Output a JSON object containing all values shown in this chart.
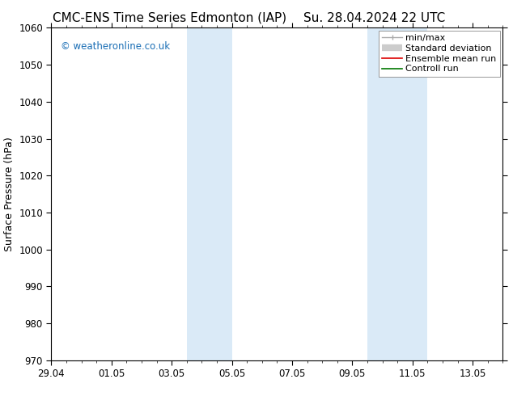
{
  "title_left": "CMC-ENS Time Series Edmonton (IAP)",
  "title_right": "Su. 28.04.2024 22 UTC",
  "ylabel": "Surface Pressure (hPa)",
  "ylim": [
    970,
    1060
  ],
  "yticks": [
    970,
    980,
    990,
    1000,
    1010,
    1020,
    1030,
    1040,
    1050,
    1060
  ],
  "xlim": [
    0,
    15
  ],
  "xtick_labels": [
    "29.04",
    "01.05",
    "03.05",
    "05.05",
    "07.05",
    "09.05",
    "11.05",
    "13.05"
  ],
  "xtick_positions": [
    0,
    2,
    4,
    6,
    8,
    10,
    12,
    14
  ],
  "shaded_bands": [
    {
      "start": 4.5,
      "end": 6.0
    },
    {
      "start": 10.5,
      "end": 12.5
    }
  ],
  "shade_color": "#daeaf7",
  "watermark": "© weatheronline.co.uk",
  "watermark_color": "#1a6eb5",
  "title_fontsize": 11,
  "axis_label_fontsize": 9,
  "tick_fontsize": 8.5,
  "legend_fontsize": 8,
  "bg_color": "#ffffff",
  "plot_bg_color": "#ffffff",
  "border_color": "#000000",
  "minmax_color": "#aaaaaa",
  "stddev_color": "#cccccc",
  "ensemble_color": "#dd0000",
  "control_color": "#007700"
}
